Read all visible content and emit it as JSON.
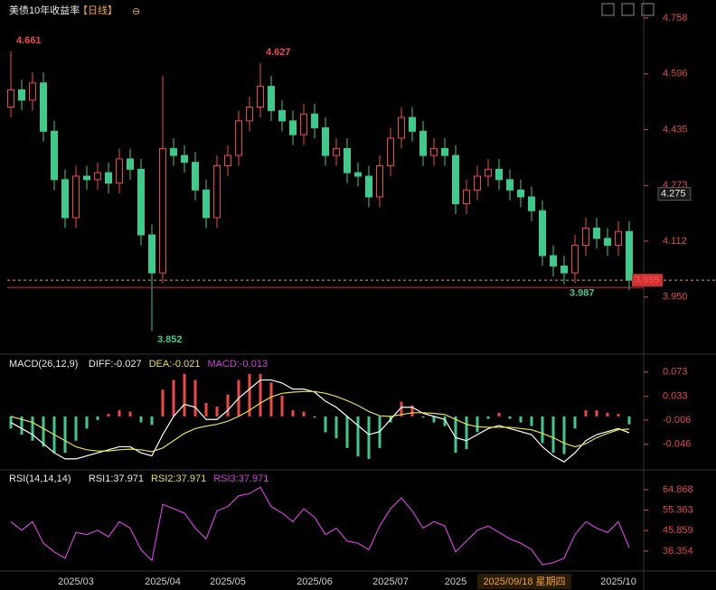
{
  "chart_data": [
    {
      "type": "candlestick",
      "title": "美债10年收益率",
      "period": "【日线】",
      "up_color": "#f0484a",
      "down_color": "#3fc98a",
      "tick_color": "#e04848",
      "ylim": [
        3.79,
        4.81
      ],
      "yticks": [
        4.758,
        4.596,
        4.435,
        4.273,
        4.112,
        {
          "value": 3.95,
          "label": "3.950"
        }
      ],
      "last_price": 3.999,
      "crosshair_value": 4.275,
      "crosshair_date": "2025/09/18 星期四",
      "categories": [
        null,
        null,
        null,
        null,
        null,
        null,
        "2025/03",
        null,
        null,
        null,
        null,
        null,
        null,
        null,
        "2025/04",
        null,
        null,
        null,
        null,
        null,
        "2025/05",
        null,
        null,
        null,
        null,
        null,
        null,
        null,
        "2025/06",
        null,
        null,
        null,
        null,
        null,
        null,
        "2025/07",
        null,
        null,
        null,
        null,
        null,
        "2025",
        null,
        null,
        null,
        null,
        null,
        null,
        null,
        null,
        null,
        null,
        null,
        null,
        null,
        null,
        "2025/10",
        null
      ],
      "open": [
        4.5,
        4.55,
        4.52,
        4.57,
        4.43,
        4.29,
        4.18,
        4.3,
        4.29,
        4.31,
        4.28,
        4.35,
        4.32,
        4.13,
        4.02,
        4.38,
        4.36,
        4.34,
        4.26,
        4.18,
        4.33,
        4.36,
        4.46,
        4.5,
        4.56,
        4.49,
        4.46,
        4.42,
        4.48,
        4.44,
        4.36,
        4.38,
        4.31,
        4.3,
        4.24,
        4.33,
        4.41,
        4.47,
        4.43,
        4.36,
        4.38,
        4.36,
        4.22,
        4.26,
        4.3,
        4.32,
        4.29,
        4.26,
        4.24,
        4.2,
        4.07,
        4.04,
        4.02,
        4.1,
        4.15,
        4.12,
        4.1,
        4.14
      ],
      "high": [
        4.661,
        4.58,
        4.6,
        4.6,
        4.46,
        4.32,
        4.33,
        4.33,
        4.34,
        4.34,
        4.38,
        4.38,
        4.35,
        4.16,
        4.59,
        4.41,
        4.39,
        4.37,
        4.29,
        4.36,
        4.39,
        4.49,
        4.53,
        4.627,
        4.59,
        4.52,
        4.49,
        4.51,
        4.51,
        4.47,
        4.41,
        4.41,
        4.34,
        4.33,
        4.36,
        4.44,
        4.5,
        4.5,
        4.46,
        4.41,
        4.41,
        4.39,
        4.29,
        4.33,
        4.35,
        4.35,
        4.32,
        4.29,
        4.27,
        4.23,
        4.1,
        4.07,
        4.13,
        4.18,
        4.18,
        4.15,
        4.17,
        4.17
      ],
      "low": [
        4.47,
        4.49,
        4.49,
        4.4,
        4.26,
        4.15,
        4.15,
        4.26,
        4.26,
        4.25,
        4.25,
        4.29,
        4.1,
        3.852,
        3.99,
        4.33,
        4.31,
        4.23,
        4.15,
        4.15,
        4.3,
        4.33,
        4.43,
        4.47,
        4.46,
        4.43,
        4.39,
        4.39,
        4.41,
        4.33,
        4.33,
        4.28,
        4.27,
        4.21,
        4.21,
        4.3,
        4.38,
        4.4,
        4.33,
        4.33,
        4.33,
        4.19,
        4.19,
        4.23,
        4.27,
        4.26,
        4.23,
        4.21,
        4.17,
        4.04,
        4.01,
        3.987,
        3.99,
        4.07,
        4.09,
        4.07,
        4.07,
        3.97
      ],
      "close": [
        4.55,
        4.52,
        4.57,
        4.43,
        4.29,
        4.18,
        4.3,
        4.29,
        4.31,
        4.28,
        4.35,
        4.32,
        4.13,
        4.02,
        4.38,
        4.36,
        4.34,
        4.26,
        4.18,
        4.33,
        4.36,
        4.46,
        4.5,
        4.56,
        4.49,
        4.46,
        4.42,
        4.48,
        4.44,
        4.36,
        4.38,
        4.31,
        4.3,
        4.24,
        4.33,
        4.41,
        4.47,
        4.43,
        4.36,
        4.38,
        4.36,
        4.22,
        4.26,
        4.3,
        4.32,
        4.29,
        4.26,
        4.24,
        4.2,
        4.07,
        4.04,
        4.02,
        4.1,
        4.15,
        4.12,
        4.1,
        4.14,
        3.999
      ]
    },
    {
      "type": "macd",
      "title": "MACD(26,12,9)",
      "legend_labels": [
        "DIFF:-0.027",
        "DEA:-0.021",
        "MACD:-0.013"
      ],
      "tick_color": "#e04848",
      "ylim": [
        -0.088,
        0.098
      ],
      "yticks": [
        0.073,
        0.033,
        -0.006,
        -0.046
      ],
      "series": [
        {
          "name": "DIFF",
          "color": "#ffffff",
          "values": [
            -0.01,
            -0.02,
            -0.03,
            -0.045,
            -0.06,
            -0.07,
            -0.07,
            -0.065,
            -0.06,
            -0.055,
            -0.05,
            -0.05,
            -0.06,
            -0.065,
            -0.03,
            0.0,
            0.02,
            0.015,
            -0.005,
            -0.005,
            0.01,
            0.03,
            0.045,
            0.06,
            0.06,
            0.055,
            0.045,
            0.045,
            0.04,
            0.025,
            0.015,
            0.0,
            -0.015,
            -0.03,
            -0.025,
            -0.005,
            0.015,
            0.015,
            0.005,
            0.0,
            -0.005,
            -0.035,
            -0.04,
            -0.03,
            -0.02,
            -0.015,
            -0.02,
            -0.025,
            -0.03,
            -0.05,
            -0.065,
            -0.075,
            -0.06,
            -0.04,
            -0.03,
            -0.025,
            -0.02,
            -0.027
          ]
        },
        {
          "name": "DEA",
          "color": "#e8e040",
          "values": [
            0.0,
            -0.005,
            -0.01,
            -0.02,
            -0.03,
            -0.04,
            -0.05,
            -0.055,
            -0.057,
            -0.057,
            -0.055,
            -0.054,
            -0.055,
            -0.058,
            -0.052,
            -0.04,
            -0.028,
            -0.02,
            -0.016,
            -0.013,
            -0.008,
            0.0,
            0.01,
            0.022,
            0.032,
            0.038,
            0.04,
            0.041,
            0.041,
            0.038,
            0.033,
            0.026,
            0.018,
            0.008,
            0.001,
            0.0,
            0.003,
            0.006,
            0.006,
            0.005,
            0.003,
            -0.005,
            -0.013,
            -0.017,
            -0.018,
            -0.018,
            -0.018,
            -0.02,
            -0.022,
            -0.028,
            -0.035,
            -0.044,
            -0.05,
            -0.045,
            -0.035,
            -0.028,
            -0.022,
            -0.021
          ]
        },
        {
          "name": "MACD",
          "up_color": "#f0484a",
          "down_color": "#3fc98a",
          "values": [
            -0.02,
            -0.03,
            -0.04,
            -0.05,
            -0.06,
            -0.06,
            -0.04,
            -0.02,
            -0.006,
            0.004,
            0.01,
            0.008,
            -0.01,
            -0.014,
            0.044,
            0.06,
            0.07,
            0.06,
            0.022,
            0.016,
            0.036,
            0.06,
            0.07,
            0.07,
            0.056,
            0.034,
            0.01,
            0.008,
            -0.002,
            -0.026,
            -0.036,
            -0.052,
            -0.066,
            -0.07,
            -0.052,
            -0.01,
            0.024,
            0.018,
            -0.002,
            -0.01,
            -0.016,
            -0.06,
            -0.054,
            -0.026,
            -0.004,
            0.006,
            -0.004,
            -0.01,
            -0.016,
            -0.044,
            -0.06,
            -0.062,
            -0.02,
            0.01,
            0.01,
            0.006,
            0.004,
            -0.013
          ]
        }
      ]
    },
    {
      "type": "line",
      "title": "RSI(14,14,14)",
      "legend_labels": [
        "RSI1:37.971",
        "RSI2:37.971",
        "RSI3:37.971"
      ],
      "tick_color": "#e04848",
      "ylim": [
        27.1,
        73.2
      ],
      "yticks": [
        64.868,
        55.363,
        45.859,
        36.354
      ],
      "series": [
        {
          "name": "RSI1",
          "color": "#d040d8",
          "values": [
            50,
            46,
            50,
            40,
            36,
            33,
            45,
            44,
            46,
            43,
            50,
            47,
            37,
            32,
            58,
            56,
            54,
            47,
            42,
            55,
            57,
            62,
            63,
            66,
            57,
            54,
            50,
            56,
            52,
            44,
            47,
            41,
            40,
            37,
            48,
            56,
            61,
            55,
            47,
            50,
            48,
            36,
            41,
            46,
            48,
            45,
            42,
            40,
            37,
            30,
            31,
            33,
            44,
            50,
            47,
            45,
            50,
            37.971
          ]
        }
      ]
    }
  ]
}
